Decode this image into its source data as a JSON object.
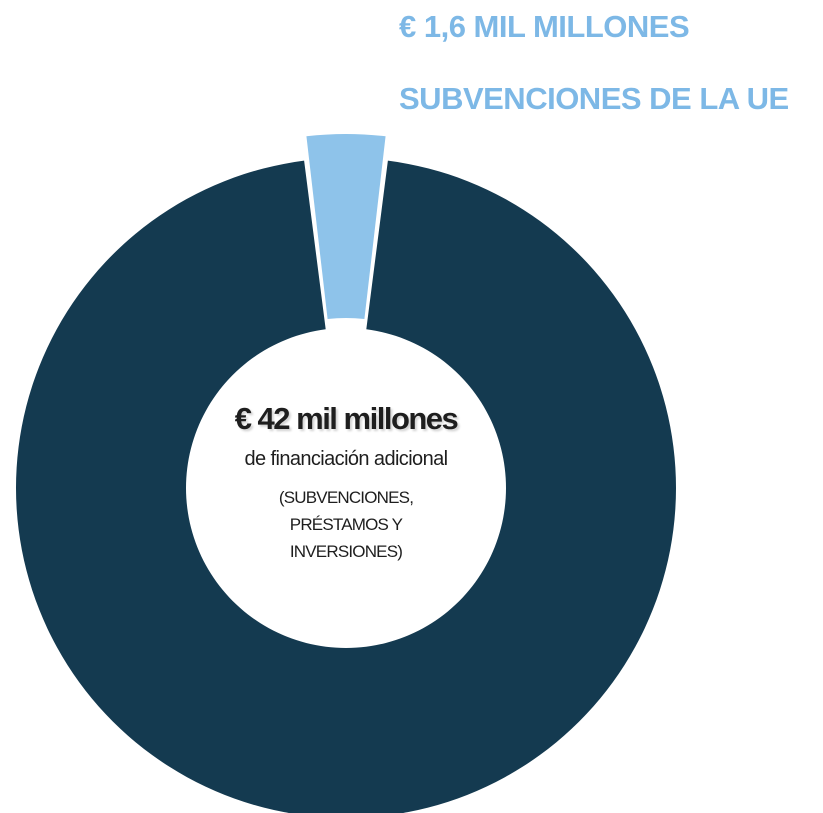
{
  "colors": {
    "main": "#143a50",
    "accent": "#8ec3ea",
    "accent_text": "#7db8e6",
    "background": "#ffffff"
  },
  "chart_data": {
    "type": "pie",
    "donut": true,
    "title": "",
    "slices": [
      {
        "name": "€ 42 mil millones",
        "value": 42,
        "color": "#143a50"
      },
      {
        "name": "€ 1,6 MIL MILLONES",
        "value": 1.6,
        "color": "#8ec3ea",
        "exploded": true
      }
    ],
    "labels": {
      "ue_amount": "€ 1,6 MIL MILLONES",
      "ue_text": "SUBVENCIONES DE LA UE",
      "center_amount": "€ 42 mil millones",
      "center_sub": "de financiación adicional",
      "center_note": "(SUBVENCIONES, PRÉSTAMOS Y INVERSIONES)"
    }
  }
}
